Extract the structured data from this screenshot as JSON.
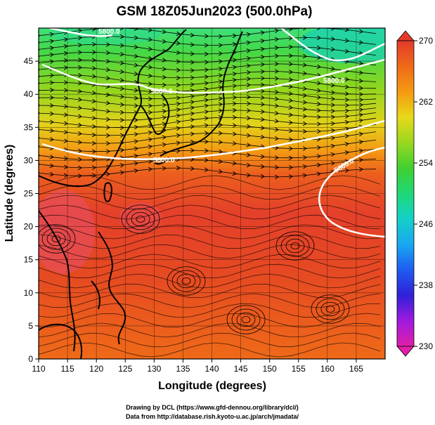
{
  "title": "GSM 18Z05Jun2023 (500.0hPa)",
  "xlabel": "Longitude (degrees)",
  "ylabel": "Latitude  (degrees)",
  "x_ticks": [
    "110",
    "115",
    "120",
    "125",
    "130",
    "135",
    "140",
    "145",
    "150",
    "155",
    "160",
    "165"
  ],
  "y_ticks": [
    "0",
    "5",
    "10",
    "15",
    "20",
    "25",
    "30",
    "35",
    "40",
    "45"
  ],
  "colorbar": {
    "labels": [
      "270",
      "262",
      "254",
      "246",
      "238",
      "230"
    ],
    "min": 230,
    "max": 270,
    "stops": [
      "#e01fa8",
      "#a01ae0",
      "#3020d8",
      "#1e5cf0",
      "#18a8f0",
      "#14d0c8",
      "#1ed878",
      "#40d030",
      "#9ad81e",
      "#e8d818",
      "#f59a10",
      "#ef6a18",
      "#e23a2a"
    ]
  },
  "contour_labels": [
    "5800.0",
    "5800.0",
    "5800.0",
    "5800.0",
    "5800.0"
  ],
  "credits": [
    "Drawing by DCL (https://www.gfd-dennou.org/library/dcl/)",
    "Data from http://database.rish.kyoto-u.ac.jp/arch/jmadata/"
  ]
}
